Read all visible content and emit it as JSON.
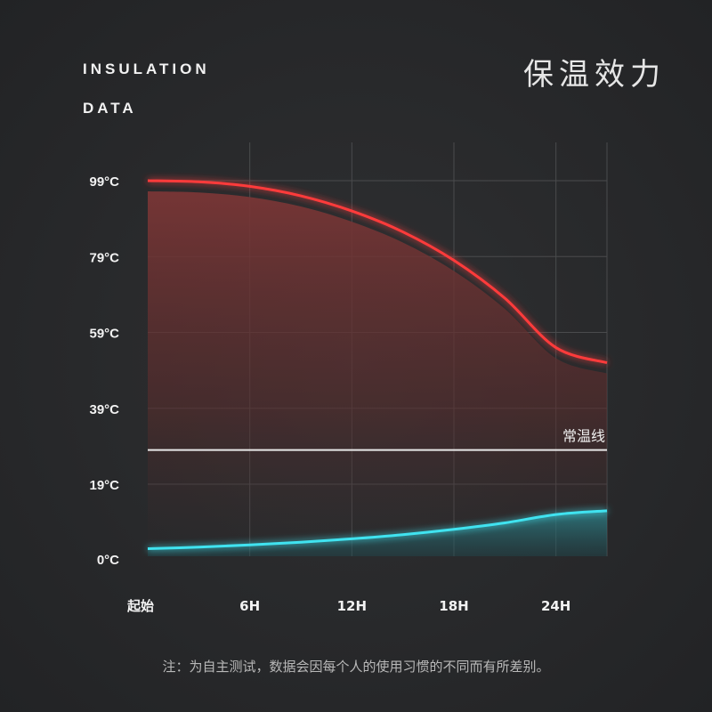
{
  "header": {
    "title_en_line1": "INSULATION",
    "title_en_line2": "DATA",
    "title_cn": "保温效力"
  },
  "footnote": "注：为自主测试，数据会因每个人的使用习惯的不同而有所差别。",
  "chart_data": {
    "type": "area",
    "title": "保温效力",
    "x_ticks": [
      "起始",
      "6H",
      "12H",
      "18H",
      "24H"
    ],
    "x_values": [
      0,
      6,
      12,
      18,
      24
    ],
    "xlim": [
      0,
      27
    ],
    "y_ticks": [
      "0°C",
      "19°C",
      "39°C",
      "59°C",
      "79°C",
      "99°C"
    ],
    "y_tick_values": [
      0,
      19,
      39,
      59,
      79,
      99
    ],
    "ylim": [
      0,
      99
    ],
    "grid": true,
    "reference_line": {
      "label": "常温线",
      "value": 28
    },
    "series": [
      {
        "color": "#ff3b3b",
        "x": [
          0,
          3,
          6,
          9,
          12,
          15,
          18,
          21,
          24,
          27
        ],
        "values": [
          99,
          98.7,
          97.5,
          95,
          91,
          85.5,
          78,
          68,
          55,
          51
        ]
      },
      {
        "color": "#3fe3f0",
        "x": [
          0,
          3,
          6,
          9,
          12,
          15,
          18,
          21,
          24,
          27
        ],
        "values": [
          2,
          2.4,
          3,
          3.7,
          4.6,
          5.7,
          7.1,
          8.8,
          11,
          12
        ]
      }
    ],
    "colors": {
      "hot": "#ff3b3b",
      "cold": "#3fe3f0",
      "ambient": "#e8e8e8"
    }
  }
}
